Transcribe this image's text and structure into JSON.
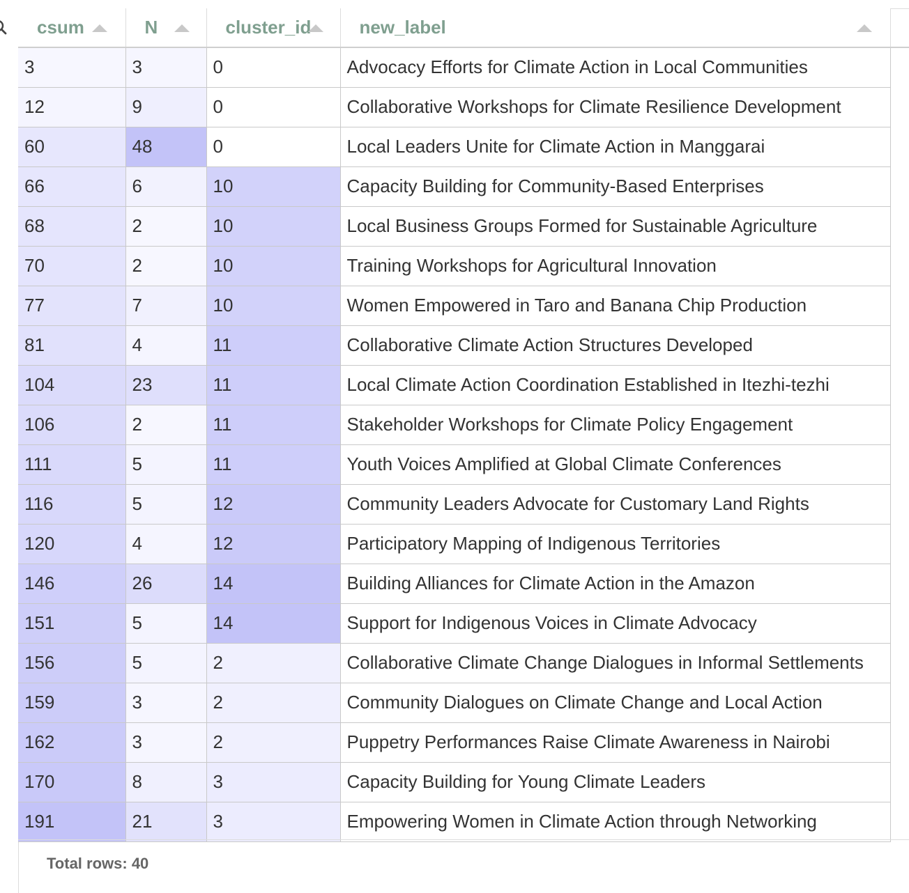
{
  "header": {
    "columns": [
      "csum",
      "N",
      "cluster_id",
      "new_label"
    ]
  },
  "rows": [
    [
      "3",
      "3",
      "0",
      "Advocacy Efforts for Climate Action in Local Communities"
    ],
    [
      "12",
      "9",
      "0",
      "Collaborative Workshops for Climate Resilience Development"
    ],
    [
      "60",
      "48",
      "0",
      "Local Leaders Unite for Climate Action in Manggarai"
    ],
    [
      "66",
      "6",
      "10",
      "Capacity Building for Community-Based Enterprises"
    ],
    [
      "68",
      "2",
      "10",
      "Local Business Groups Formed for Sustainable Agriculture"
    ],
    [
      "70",
      "2",
      "10",
      "Training Workshops for Agricultural Innovation"
    ],
    [
      "77",
      "7",
      "10",
      "Women Empowered in Taro and Banana Chip Production"
    ],
    [
      "81",
      "4",
      "11",
      "Collaborative Climate Action Structures Developed"
    ],
    [
      "104",
      "23",
      "11",
      "Local Climate Action Coordination Established in Itezhi-tezhi"
    ],
    [
      "106",
      "2",
      "11",
      "Stakeholder Workshops for Climate Policy Engagement"
    ],
    [
      "111",
      "5",
      "11",
      "Youth Voices Amplified at Global Climate Conferences"
    ],
    [
      "116",
      "5",
      "12",
      "Community Leaders Advocate for Customary Land Rights"
    ],
    [
      "120",
      "4",
      "12",
      "Participatory Mapping of Indigenous Territories"
    ],
    [
      "146",
      "26",
      "14",
      "Building Alliances for Climate Action in the Amazon"
    ],
    [
      "151",
      "5",
      "14",
      "Support for Indigenous Voices in Climate Advocacy"
    ],
    [
      "156",
      "5",
      "2",
      "Collaborative Climate Change Dialogues in Informal Settlements"
    ],
    [
      "159",
      "3",
      "2",
      "Community Dialogues on Climate Change and Local Action"
    ],
    [
      "162",
      "3",
      "2",
      "Puppetry Performances Raise Climate Awareness in Nairobi"
    ],
    [
      "170",
      "8",
      "3",
      "Capacity Building for Young Climate Leaders"
    ],
    [
      "191",
      "21",
      "3",
      "Empowering Women in Climate Action through Networking"
    ]
  ],
  "footer": {
    "total_rows": "Total rows: 40"
  },
  "colors": {
    "header_text": "#7f9f8f",
    "heat_low": "#f7f7ff",
    "heat_high": "#c3c3f8",
    "sort_arrow": "#c8c8c8"
  },
  "icons": {
    "search": "search-icon"
  }
}
